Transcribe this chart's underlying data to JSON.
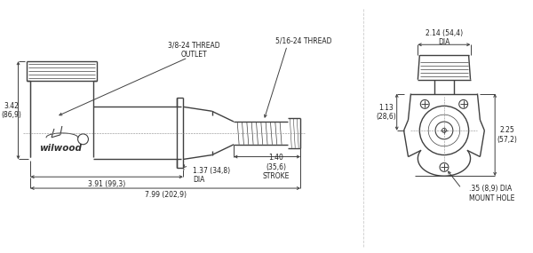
{
  "background_color": "#ffffff",
  "line_color": "#404040",
  "dim_color": "#404040",
  "text_color": "#202020",
  "lw_main": 1.0,
  "lw_dim": 0.7,
  "annotations": {
    "thread_outlet": "3/8-24 THREAD\nOUTLET",
    "thread_5_16": "5/16-24 THREAD",
    "dia_1_37": "1.37 (34,8)\nDIA",
    "stroke": "1.40\n(35,6)\nSTROKE",
    "height": "3.42\n(86,9)",
    "dim_391": "3.91 (99,3)",
    "dim_799": "7.99 (202,9)",
    "dia_top": "2.14 (54,4)\nDIA",
    "dim_113": "1.13\n(28,6)",
    "dim_225": "2.25\n(57,2)",
    "mount_hole": ".35 (8,9) DIA\nMOUNT HOLE",
    "brand": "wilwood"
  }
}
